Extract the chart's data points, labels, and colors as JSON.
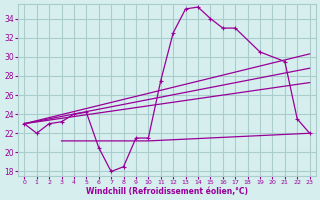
{
  "xlabel": "Windchill (Refroidissement éolien,°C)",
  "background_color": "#d6eeee",
  "grid_color": "#aacccc",
  "line_color": "#990099",
  "xlim": [
    -0.5,
    23.5
  ],
  "ylim": [
    17.5,
    35.5
  ],
  "yticks": [
    18,
    20,
    22,
    24,
    26,
    28,
    30,
    32,
    34
  ],
  "xticks": [
    0,
    1,
    2,
    3,
    4,
    5,
    6,
    7,
    8,
    9,
    10,
    11,
    12,
    13,
    14,
    15,
    16,
    17,
    18,
    19,
    20,
    21,
    22,
    23
  ],
  "series": [
    {
      "x": [
        0,
        1,
        2,
        3,
        4,
        5,
        6,
        7,
        8,
        9,
        10,
        11,
        12,
        13,
        14,
        15,
        16,
        17,
        19,
        21,
        22,
        23
      ],
      "y": [
        23.0,
        22.0,
        23.0,
        23.2,
        24.0,
        24.2,
        20.5,
        18.0,
        18.5,
        21.5,
        21.5,
        27.5,
        32.5,
        35.0,
        35.2,
        34.0,
        33.0,
        33.0,
        30.5,
        29.5,
        23.5,
        22.0
      ],
      "markers": true
    },
    {
      "x": [
        0,
        23
      ],
      "y": [
        23.0,
        30.3
      ],
      "markers": false
    },
    {
      "x": [
        0,
        23
      ],
      "y": [
        23.0,
        28.8
      ],
      "markers": false
    },
    {
      "x": [
        0,
        23
      ],
      "y": [
        23.0,
        27.3
      ],
      "markers": false
    },
    {
      "x": [
        3,
        9,
        10,
        23
      ],
      "y": [
        21.2,
        21.2,
        21.2,
        22.0
      ],
      "markers": false
    }
  ]
}
